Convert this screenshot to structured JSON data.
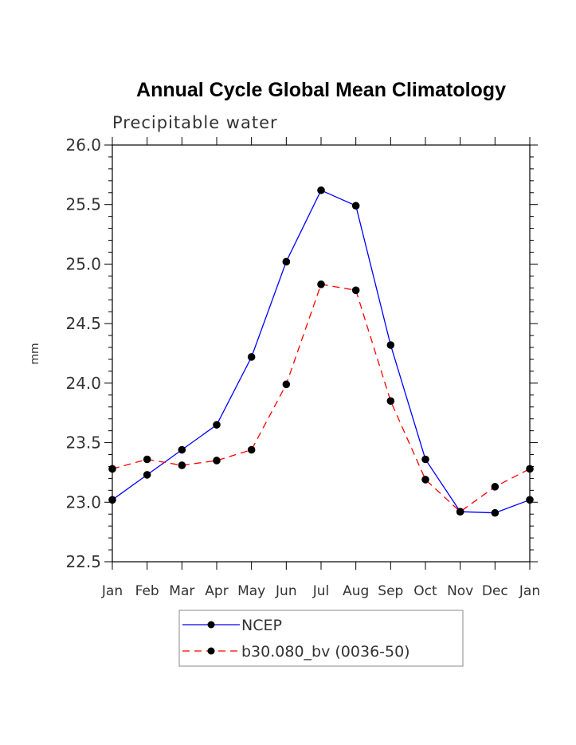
{
  "chart_data": {
    "type": "line",
    "title": "Annual Cycle Global Mean Climatology",
    "subtitle": "Precipitable water",
    "xlabel": "",
    "ylabel": "mm",
    "categories": [
      "Jan",
      "Feb",
      "Mar",
      "Apr",
      "May",
      "Jun",
      "Jul",
      "Aug",
      "Sep",
      "Oct",
      "Nov",
      "Dec",
      "Jan"
    ],
    "ylim": [
      22.5,
      26.0
    ],
    "yticks": [
      "22.5",
      "23.0",
      "23.5",
      "24.0",
      "24.5",
      "25.0",
      "25.5",
      "26.0"
    ],
    "series": [
      {
        "name": "NCEP",
        "color": "#0000ff",
        "line_style": "solid",
        "values": [
          23.02,
          23.23,
          23.44,
          23.65,
          24.22,
          25.02,
          25.62,
          25.49,
          24.32,
          23.36,
          22.92,
          22.91,
          23.02
        ]
      },
      {
        "name": "b30.080_bv (0036-50)",
        "color": "#ff0000",
        "line_style": "dashed",
        "values": [
          23.28,
          23.36,
          23.31,
          23.35,
          23.44,
          23.99,
          24.83,
          24.78,
          23.85,
          23.19,
          22.92,
          23.13,
          23.28
        ]
      }
    ],
    "grid": false,
    "legend_position": "bottom"
  }
}
